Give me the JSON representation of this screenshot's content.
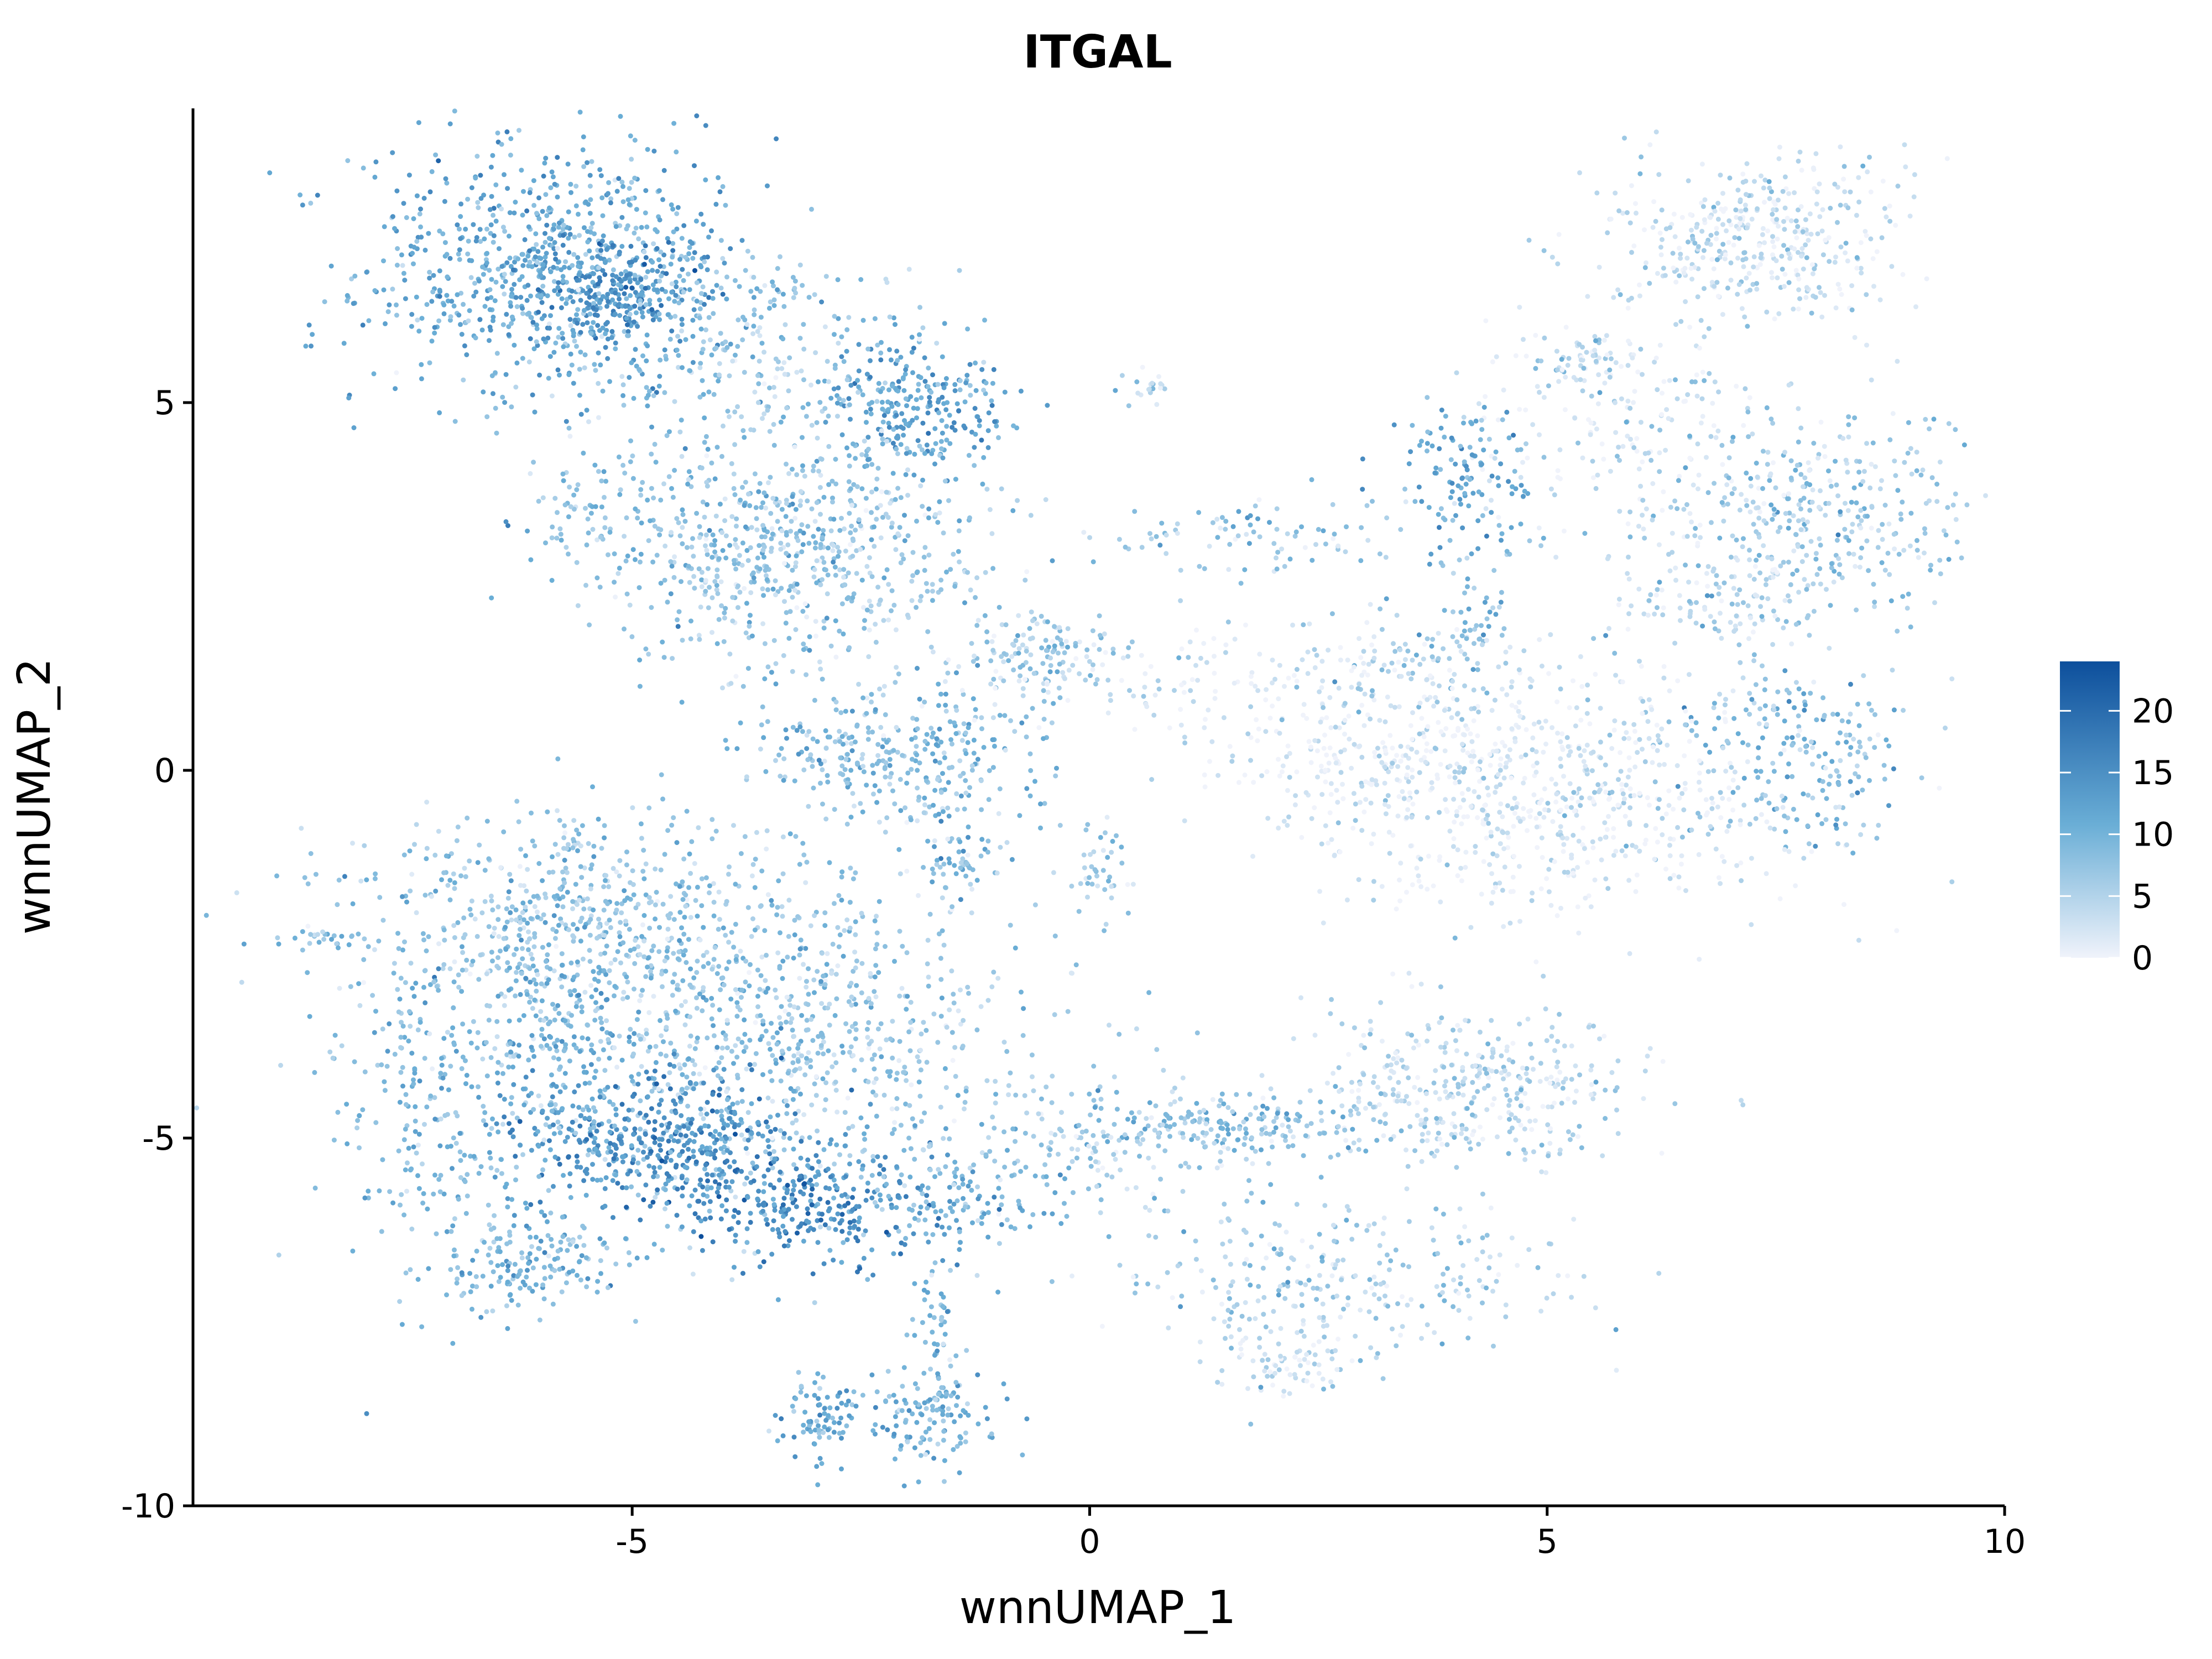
{
  "chart_data": {
    "type": "scatter",
    "title": "ITGAL",
    "xlabel": "wnnUMAP_1",
    "ylabel": "wnnUMAP_2",
    "xlim": [
      -9.8,
      10
    ],
    "ylim": [
      -10,
      9
    ],
    "x_ticks": [
      -5,
      0,
      5,
      10
    ],
    "x_tick_labels": [
      "-5",
      "0",
      "5",
      "10"
    ],
    "y_ticks": [
      -10,
      -5,
      0,
      5
    ],
    "y_tick_labels": [
      "-10",
      "-5",
      "0",
      "5"
    ],
    "grid": false,
    "legend_position": "right",
    "color_scale": {
      "low_color": "#f0f3fb",
      "mid_color": "#6aaed6",
      "high_color": "#0d4f9c",
      "min": 0,
      "max": 24,
      "ticks": [
        0,
        5,
        10,
        15,
        20
      ],
      "tick_labels": [
        "0",
        "5",
        "10",
        "15",
        "20"
      ]
    },
    "clusters": [
      {
        "cx": -5.8,
        "cy": 6.8,
        "sx": 1.1,
        "sy": 0.9,
        "n": 800,
        "expr": 11
      },
      {
        "cx": -5.2,
        "cy": 6.5,
        "sx": 0.45,
        "sy": 0.35,
        "n": 200,
        "expr": 15
      },
      {
        "cx": -1.9,
        "cy": 5.0,
        "sx": 0.5,
        "sy": 0.45,
        "n": 240,
        "expr": 12
      },
      {
        "cx": -3.8,
        "cy": 5.8,
        "sx": 1.0,
        "sy": 0.7,
        "n": 250,
        "expr": 7
      },
      {
        "cx": -2.8,
        "cy": 3.0,
        "sx": 0.9,
        "sy": 0.9,
        "n": 500,
        "expr": 7
      },
      {
        "cx": -4.2,
        "cy": 3.0,
        "sx": 0.7,
        "sy": 0.7,
        "n": 220,
        "expr": 7
      },
      {
        "cx": -5.5,
        "cy": 3.5,
        "sx": 0.25,
        "sy": 0.4,
        "n": 60,
        "expr": 7
      },
      {
        "cx": -2.5,
        "cy": 0.2,
        "sx": 0.6,
        "sy": 0.4,
        "n": 180,
        "expr": 8
      },
      {
        "cx": -1.4,
        "cy": 0.1,
        "sx": 0.5,
        "sy": 0.6,
        "n": 160,
        "expr": 8
      },
      {
        "cx": -1.5,
        "cy": -1.3,
        "sx": 0.2,
        "sy": 0.25,
        "n": 40,
        "expr": 9
      },
      {
        "cx": -0.5,
        "cy": 1.6,
        "sx": 0.4,
        "sy": 0.3,
        "n": 120,
        "expr": 6
      },
      {
        "cx": 0.1,
        "cy": -1.3,
        "sx": 0.15,
        "sy": 0.35,
        "n": 35,
        "expr": 6
      },
      {
        "cx": 0.6,
        "cy": 5.2,
        "sx": 0.12,
        "sy": 0.12,
        "n": 20,
        "expr": 6
      },
      {
        "cx": 1.8,
        "cy": 3.2,
        "sx": 0.9,
        "sy": 0.3,
        "n": 90,
        "expr": 7
      },
      {
        "cx": 7.3,
        "cy": 7.2,
        "sx": 0.8,
        "sy": 0.6,
        "n": 420,
        "expr": 3
      },
      {
        "cx": 5.4,
        "cy": 5.6,
        "sx": 0.35,
        "sy": 0.2,
        "n": 60,
        "expr": 4
      },
      {
        "cx": 5.9,
        "cy": 4.6,
        "sx": 0.9,
        "sy": 0.7,
        "n": 180,
        "expr": 2
      },
      {
        "cx": 4.1,
        "cy": 4.0,
        "sx": 0.4,
        "sy": 0.5,
        "n": 120,
        "expr": 11
      },
      {
        "cx": 4.2,
        "cy": 2.0,
        "sx": 0.25,
        "sy": 0.6,
        "n": 60,
        "expr": 9
      },
      {
        "cx": 7.9,
        "cy": 3.5,
        "sx": 0.9,
        "sy": 0.7,
        "n": 360,
        "expr": 6
      },
      {
        "cx": 6.8,
        "cy": 2.3,
        "sx": 0.6,
        "sy": 0.4,
        "n": 120,
        "expr": 4
      },
      {
        "cx": 7.8,
        "cy": 0.2,
        "sx": 0.6,
        "sy": 0.6,
        "n": 200,
        "expr": 8
      },
      {
        "cx": 5.0,
        "cy": -0.3,
        "sx": 1.4,
        "sy": 0.8,
        "n": 700,
        "expr": 2
      },
      {
        "cx": 3.0,
        "cy": 0.3,
        "sx": 0.9,
        "sy": 0.5,
        "n": 200,
        "expr": 1
      },
      {
        "cx": 3.4,
        "cy": 1.5,
        "sx": 0.7,
        "sy": 0.3,
        "n": 80,
        "expr": 5
      },
      {
        "cx": -5.4,
        "cy": -2.0,
        "sx": 1.4,
        "sy": 0.7,
        "n": 600,
        "expr": 7
      },
      {
        "cx": -3.4,
        "cy": -3.8,
        "sx": 1.6,
        "sy": 1.1,
        "n": 900,
        "expr": 7
      },
      {
        "cx": -4.7,
        "cy": -5.0,
        "sx": 0.7,
        "sy": 0.45,
        "n": 350,
        "expr": 15
      },
      {
        "cx": -3.2,
        "cy": -5.9,
        "sx": 0.8,
        "sy": 0.4,
        "n": 300,
        "expr": 15
      },
      {
        "cx": -5.7,
        "cy": -3.7,
        "sx": 0.4,
        "sy": 0.9,
        "n": 200,
        "expr": 11
      },
      {
        "cx": -7.0,
        "cy": -4.6,
        "sx": 0.6,
        "sy": 1.2,
        "n": 260,
        "expr": 9
      },
      {
        "cx": -6.2,
        "cy": -6.7,
        "sx": 0.6,
        "sy": 0.3,
        "n": 160,
        "expr": 9
      },
      {
        "cx": -1.4,
        "cy": -5.9,
        "sx": 0.6,
        "sy": 0.35,
        "n": 100,
        "expr": 10
      },
      {
        "cx": -2.9,
        "cy": -8.8,
        "sx": 0.25,
        "sy": 0.3,
        "n": 90,
        "expr": 10
      },
      {
        "cx": -1.7,
        "cy": -8.8,
        "sx": 0.35,
        "sy": 0.35,
        "n": 120,
        "expr": 10
      },
      {
        "cx": -1.7,
        "cy": -7.6,
        "sx": 0.12,
        "sy": 0.5,
        "n": 50,
        "expr": 9
      },
      {
        "cx": 4.1,
        "cy": -4.3,
        "sx": 0.9,
        "sy": 0.6,
        "n": 380,
        "expr": 4
      },
      {
        "cx": 1.5,
        "cy": -4.8,
        "sx": 1.0,
        "sy": 0.2,
        "n": 180,
        "expr": 8
      },
      {
        "cx": 2.8,
        "cy": -6.8,
        "sx": 1.2,
        "sy": 0.5,
        "n": 260,
        "expr": 5
      },
      {
        "cx": 2.1,
        "cy": -8.0,
        "sx": 0.4,
        "sy": 0.3,
        "n": 90,
        "expr": 3
      },
      {
        "cx": 0.3,
        "cy": -5.2,
        "sx": 0.9,
        "sy": 0.4,
        "n": 120,
        "expr": 5
      },
      {
        "cx": 1.2,
        "cy": 1.2,
        "sx": 1.5,
        "sy": 0.4,
        "n": 120,
        "expr": 2
      },
      {
        "cx": -8.3,
        "cy": -2.3,
        "sx": 0.35,
        "sy": 0.06,
        "n": 25,
        "expr": 8
      }
    ]
  }
}
